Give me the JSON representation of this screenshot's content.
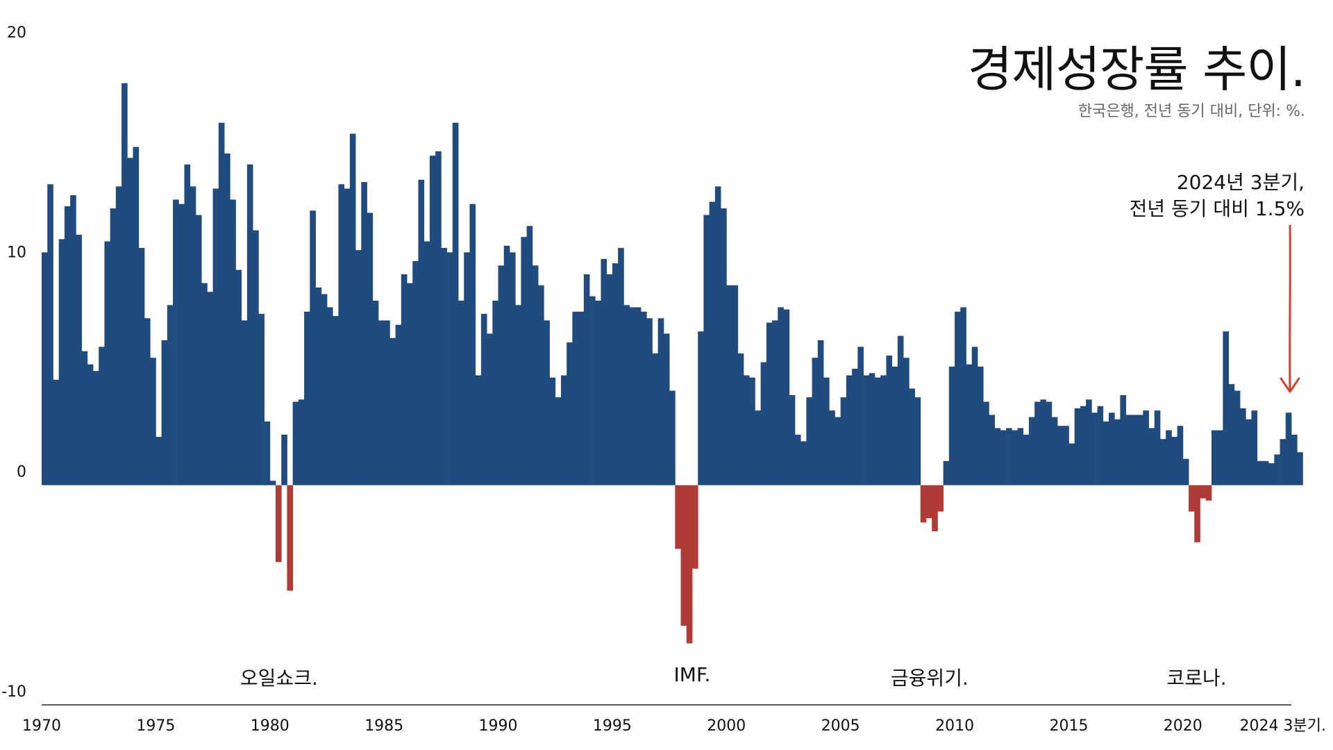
{
  "header": {
    "title": "경제성장률 추이.",
    "subtitle": "한국은행, 전년 동기 대비, 단위: %."
  },
  "annotation": {
    "line1": "2024년 3분기,",
    "line2": "전년 동기 대비 1.5%"
  },
  "colors": {
    "positive": "#1F4B7E",
    "negative": "#B03A35",
    "arrow": "#D5402E",
    "axis": "#222222"
  },
  "events": [
    {
      "label": "오일쇼크.",
      "at": 1980.4
    },
    {
      "label": "IMF.",
      "at": 1998.5
    },
    {
      "label": "금융위기.",
      "at": 2008.9
    },
    {
      "label": "코로나.",
      "at": 2020.6
    }
  ],
  "chart_data": {
    "type": "bar",
    "title": "경제성장률 추이.",
    "subtitle": "한국은행, 전년 동기 대비, 단위: %.",
    "unit": "%",
    "frequency": "quarterly",
    "x_start": "1970 Q1",
    "x_end": "2024 Q3",
    "xlim": [
      1970,
      2024.75
    ],
    "ylim": [
      -10,
      20
    ],
    "yticks": [
      -10,
      0,
      10,
      20
    ],
    "xticks": [
      "1970",
      "1975",
      "1980",
      "1985",
      "1990",
      "1995",
      "2000",
      "2005",
      "2010",
      "2015",
      "2020",
      "2024 3분기."
    ],
    "grid": false,
    "legend": "none",
    "highlight": {
      "x": "2024 Q3",
      "value": 1.5
    },
    "values": [
      10.6,
      13.7,
      4.8,
      11.2,
      12.7,
      13.2,
      11.4,
      6.1,
      5.5,
      5.2,
      6.3,
      11.1,
      12.6,
      13.6,
      18.3,
      14.9,
      15.4,
      10.8,
      7.6,
      5.8,
      2.2,
      6.6,
      8.2,
      13.0,
      12.8,
      14.6,
      13.6,
      12.3,
      9.2,
      8.8,
      13.5,
      16.5,
      15.1,
      13.0,
      9.8,
      7.5,
      14.6,
      11.6,
      7.8,
      2.9,
      0.2,
      -3.5,
      2.3,
      -4.8,
      3.8,
      3.9,
      7.9,
      12.5,
      9.0,
      8.7,
      8.1,
      7.7,
      13.7,
      13.5,
      16.0,
      10.7,
      13.8,
      12.4,
      8.4,
      7.5,
      7.5,
      6.7,
      7.3,
      9.6,
      9.2,
      10.2,
      13.9,
      11.1,
      15.0,
      15.2,
      10.8,
      10.6,
      16.5,
      8.4,
      10.6,
      12.8,
      5.0,
      7.8,
      6.9,
      8.4,
      10.0,
      10.9,
      10.6,
      8.2,
      11.3,
      11.8,
      10.0,
      9.1,
      7.5,
      4.9,
      4.0,
      5.0,
      6.5,
      7.9,
      7.9,
      9.6,
      8.6,
      8.4,
      10.3,
      9.6,
      10.1,
      10.8,
      8.2,
      8.1,
      8.1,
      7.9,
      7.6,
      6.0,
      7.6,
      6.9,
      4.3,
      -2.9,
      -6.4,
      -7.2,
      -3.8,
      7.0,
      12.3,
      12.9,
      13.6,
      12.6,
      9.1,
      9.1,
      6.0,
      5.0,
      4.9,
      3.4,
      5.6,
      7.4,
      7.5,
      8.1,
      8.0,
      4.1,
      2.3,
      2.0,
      4.0,
      5.8,
      6.6,
      4.9,
      3.4,
      3.1,
      4.0,
      5.0,
      5.3,
      6.3,
      5.0,
      5.1,
      4.9,
      5.0,
      5.9,
      5.4,
      6.8,
      5.8,
      4.4,
      4.0,
      -1.7,
      -1.5,
      -2.1,
      -1.2,
      1.1,
      5.4,
      7.9,
      8.1,
      5.5,
      6.3,
      5.4,
      3.8,
      3.2,
      2.6,
      2.5,
      2.6,
      2.5,
      2.6,
      2.3,
      3.1,
      3.8,
      3.9,
      3.8,
      3.1,
      2.7,
      2.7,
      1.9,
      3.5,
      3.6,
      3.9,
      3.3,
      3.6,
      2.9,
      3.3,
      3.0,
      4.1,
      3.2,
      3.2,
      3.2,
      3.4,
      2.6,
      3.4,
      2.1,
      2.5,
      2.2,
      2.7,
      1.2,
      -1.2,
      -2.6,
      -0.6,
      -0.7,
      2.5,
      2.5,
      7.0,
      4.6,
      4.3,
      3.5,
      3.0,
      3.4,
      1.1,
      1.1,
      1.0,
      1.4,
      2.1,
      3.3,
      2.3,
      1.5
    ]
  }
}
